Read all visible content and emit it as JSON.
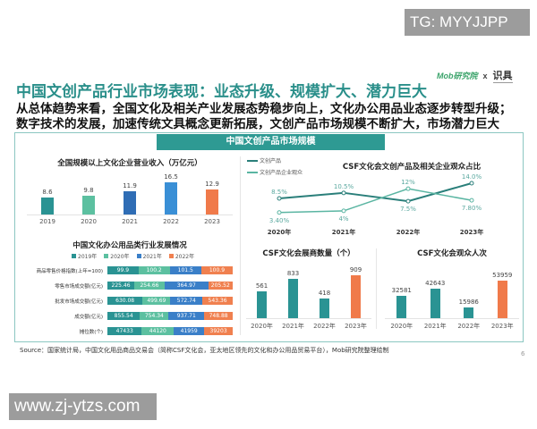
{
  "watermarks": {
    "top": "TG: MYYJJPP",
    "bottom": "www.zj-ytzs.com"
  },
  "logo": {
    "brand": "Mob研究院",
    "x": "x",
    "partner": "识具"
  },
  "title": "中国文创产品行业市场表现：业态升级、规模扩大、潜力巨大",
  "subtitle": [
    "从总体趋势来看，全国文化及相关产业发展态势稳步向上，文化办公用品业态逐步转型升级；",
    "数字技术的发展，加速传统文具概念更新拓展，文创产品市场规模不断扩大，市场潜力巨大"
  ],
  "panel_title": "中国文创产品市场规模",
  "colors": {
    "teal": "#2a9393",
    "green": "#5cc0a0",
    "blue": "#2f6db5",
    "lightblue": "#3a8fd6",
    "orange": "#f07a4a",
    "title": "#2a8f8a"
  },
  "chart_data": [
    {
      "type": "bar",
      "title": "全国规模以上文化企业营业收入（万亿元）",
      "categories": [
        "2019",
        "2020",
        "2021",
        "2022",
        "2023"
      ],
      "values": [
        8.6,
        9.8,
        11.9,
        16.5,
        12.9
      ],
      "labels": [
        "8.6",
        "9.8",
        "11.9",
        "16.5",
        "12.9"
      ]
    },
    {
      "type": "bar",
      "title": "中国文化办公用品类行业发展情况",
      "stacked": true,
      "orientation": "horizontal",
      "categories": [
        "商品零售价格指数(上年=100)",
        "零售市场成交额(亿元)",
        "批发市场成交额(亿元)",
        "成交额(亿元)",
        "摊位数(个)"
      ],
      "legend": "top",
      "series": [
        {
          "name": "2019年",
          "values": [
            99.9,
            225.46,
            630.08,
            855.54,
            47433
          ],
          "labels": [
            "99.9",
            "225.46",
            "630.08",
            "855.54",
            "47433"
          ]
        },
        {
          "name": "2020年",
          "values": [
            100.2,
            254.66,
            499.69,
            754.34,
            44120
          ],
          "labels": [
            "100.2",
            "254.66",
            "499.69",
            "754.34",
            "44120"
          ]
        },
        {
          "name": "2021年",
          "values": [
            101.5,
            364.97,
            572.74,
            937.71,
            41959
          ],
          "labels": [
            "101.5",
            "364.97",
            "572.74",
            "937.71",
            "41959"
          ]
        },
        {
          "name": "2022年",
          "values": [
            100.9,
            205.52,
            543.36,
            748.88,
            39203
          ],
          "labels": [
            "100.9",
            "205.52",
            "543.36",
            "748.88",
            "39203"
          ]
        }
      ]
    },
    {
      "type": "line",
      "title": "CSF文化会文创产品及相关企业观众占比",
      "categories": [
        "2020年",
        "2021年",
        "2022年",
        "2023年"
      ],
      "legend": "top-left",
      "series": [
        {
          "name": "文创产品",
          "values": [
            8.5,
            10.5,
            7.5,
            14.0
          ],
          "labels": [
            "8.5%",
            "10.5%",
            "7.5%",
            "14.0%"
          ]
        },
        {
          "name": "文创产品企业观众",
          "values": [
            3.4,
            4,
            12,
            7.8
          ],
          "labels": [
            "3.40%",
            "4%",
            "12%",
            "7.80%"
          ]
        }
      ]
    },
    {
      "type": "bar",
      "title": "CSF文化会展商数量（个）",
      "categories": [
        "2020年",
        "2021年",
        "2022年",
        "2023年"
      ],
      "values": [
        561,
        833,
        418,
        909
      ]
    },
    {
      "type": "bar",
      "title": "CSF文化会观众人次",
      "categories": [
        "2020年",
        "2021年",
        "2022年",
        "2023年"
      ],
      "values": [
        32581,
        42643,
        15986,
        53959
      ]
    }
  ],
  "source": "Source：国家统计局，中国文化用品商品交易会（简称CSF文化会，亚太地区领先的文化和办公用品贸易平台），Mob研究院整理绘制",
  "page_number": "6"
}
